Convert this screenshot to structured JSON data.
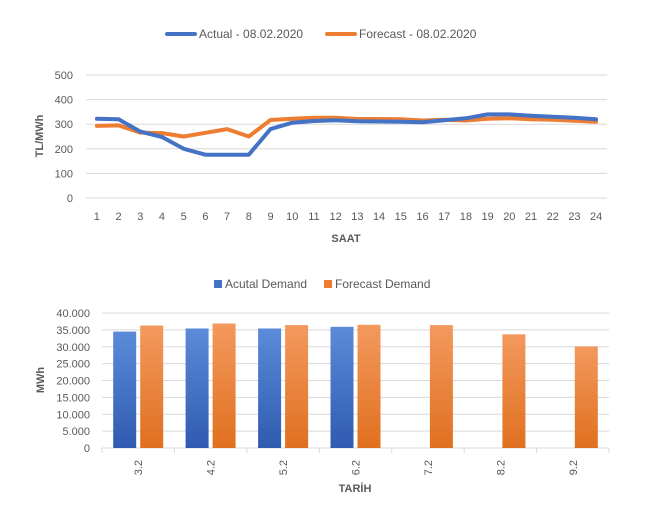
{
  "colors": {
    "actual": "#4472C4",
    "forecast": "#ED7D31",
    "grid": "#D9D9D9",
    "text": "#595959"
  },
  "chart_data": [
    {
      "type": "line",
      "legend_position": "top",
      "grid": true,
      "xlabel": "SAAT",
      "ylabel": "TL/MWh",
      "ylim": [
        0,
        500
      ],
      "yticks": [
        "0",
        "100",
        "200",
        "300",
        "400",
        "500"
      ],
      "x": [
        "1",
        "2",
        "3",
        "4",
        "5",
        "6",
        "7",
        "8",
        "9",
        "10",
        "11",
        "12",
        "13",
        "14",
        "15",
        "16",
        "17",
        "18",
        "19",
        "20",
        "21",
        "22",
        "23",
        "24"
      ],
      "series": [
        {
          "name": "Actual - 08.02.2020",
          "color": "#4472C4",
          "values": [
            322,
            320,
            270,
            248,
            200,
            176,
            176,
            176,
            280,
            306,
            313,
            316,
            312,
            311,
            310,
            308,
            316,
            324,
            340,
            340,
            334,
            330,
            326,
            320
          ]
        },
        {
          "name": "Forecast - 08.02.2020",
          "color": "#ED7D31",
          "values": [
            293,
            295,
            266,
            264,
            250,
            265,
            280,
            250,
            317,
            322,
            326,
            326,
            321,
            321,
            320,
            315,
            318,
            315,
            322,
            324,
            320,
            318,
            314,
            310
          ]
        }
      ]
    },
    {
      "type": "bar",
      "legend_position": "top",
      "grid": true,
      "xlabel": "TARİH",
      "ylabel": "MWh",
      "ylim": [
        0,
        40000
      ],
      "yticks": [
        "0",
        "5.000",
        "10.000",
        "15.000",
        "20.000",
        "25.000",
        "30.000",
        "35.000",
        "40.000"
      ],
      "categories": [
        "3.2",
        "4.2",
        "5.2",
        "6.2",
        "7.2",
        "8.2",
        "9.2"
      ],
      "series": [
        {
          "name": "Acutal Demand",
          "color": "#4472C4",
          "values": [
            34500,
            35400,
            35400,
            35900,
            null,
            null,
            null
          ]
        },
        {
          "name": "Forecast Demand",
          "color": "#ED7D31",
          "values": [
            36300,
            36900,
            36400,
            36500,
            36400,
            33700,
            30100
          ]
        }
      ]
    }
  ]
}
